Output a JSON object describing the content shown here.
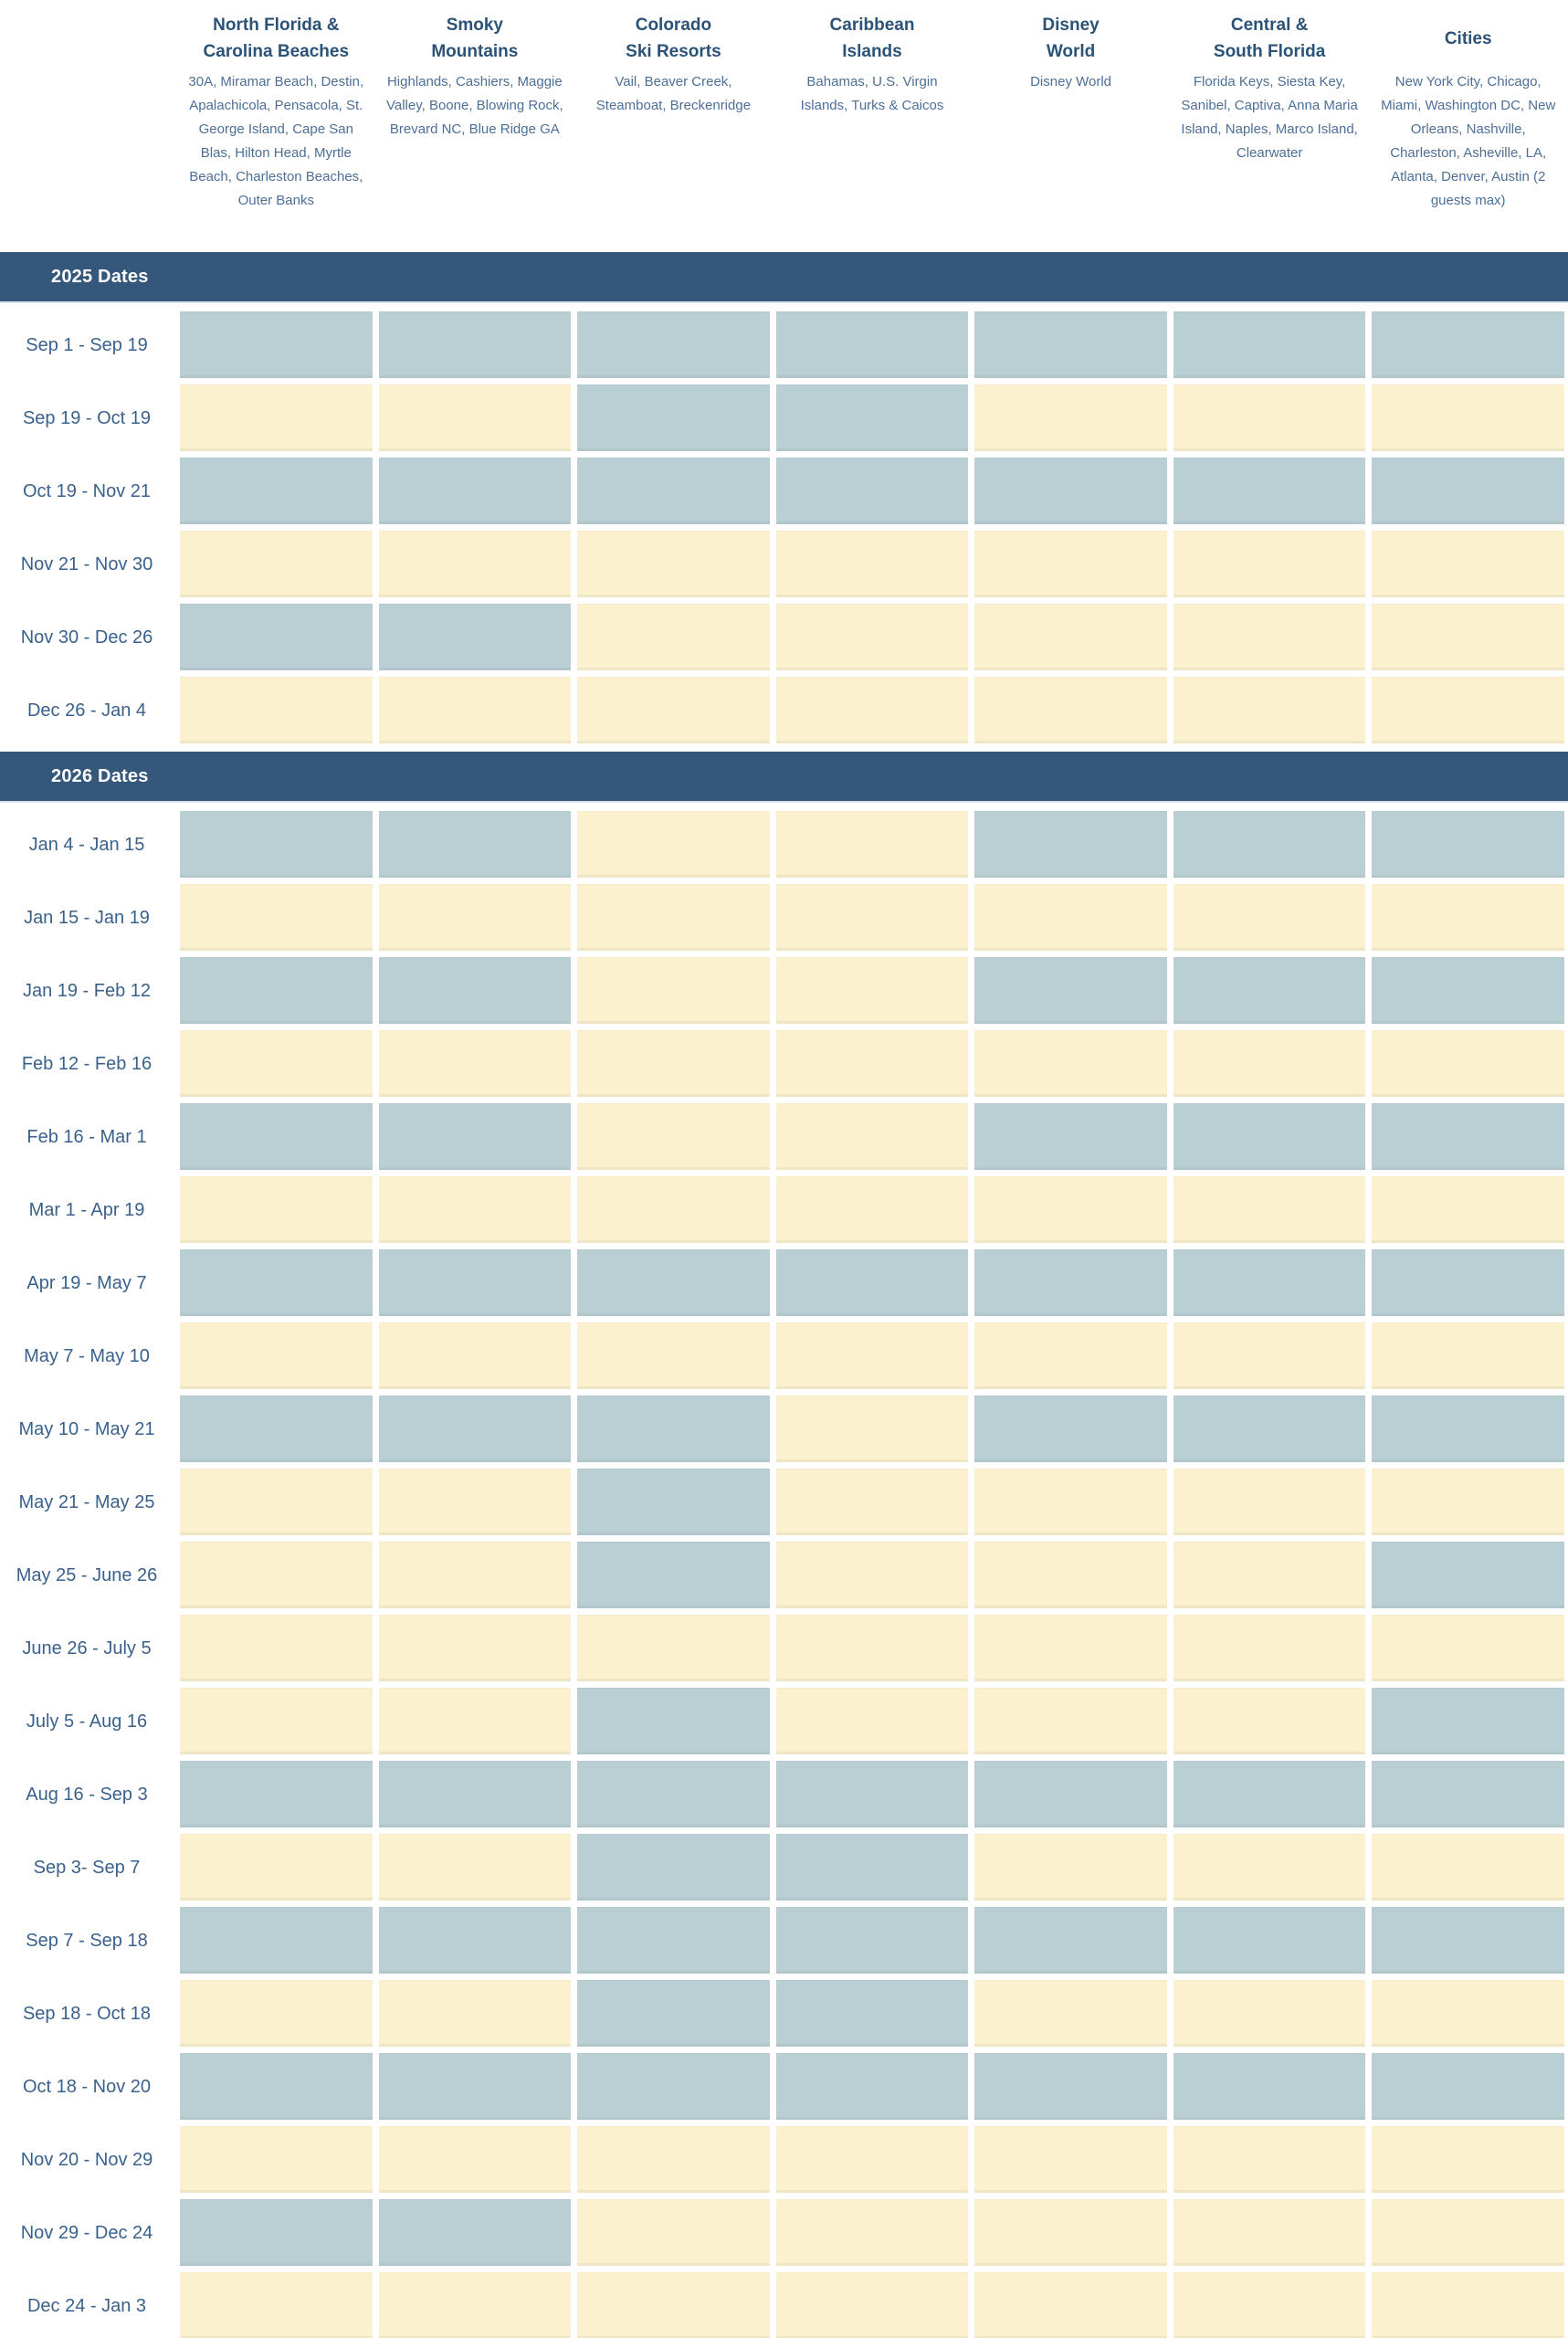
{
  "colors": {
    "banner_bg": "#35577c",
    "banner_text": "#ffffff",
    "header_title": "#2b5277",
    "header_sub": "#4d6f96",
    "row_label": "#3a618c",
    "cell_blue": "#b9cfd4",
    "cell_yellow": "#fbf1cf"
  },
  "chart_data": {
    "type": "heatmap",
    "legend_note": "cell values are the two fill colors shown: blue or yellow",
    "regions": [
      {
        "title": "North Florida &\nCarolina Beaches",
        "areas": "30A, Miramar Beach, Destin, Apalachicola, Pensacola, St. George Island, Cape San Blas, Hilton Head, Myrtle Beach, Charleston Beaches, Outer Banks"
      },
      {
        "title": "Smoky\nMountains",
        "areas": "Highlands, Cashiers, Maggie Valley, Boone, Blowing Rock, Brevard NC, Blue Ridge GA"
      },
      {
        "title": "Colorado\nSki Resorts",
        "areas": "Vail, Beaver Creek, Steamboat, Breckenridge"
      },
      {
        "title": "Caribbean\nIslands",
        "areas": "Bahamas, U.S. Virgin Islands, Turks & Caicos"
      },
      {
        "title": "Disney\nWorld",
        "areas": "Disney World"
      },
      {
        "title": "Central &\nSouth Florida",
        "areas": "Florida Keys, Siesta Key, Sanibel, Captiva, Anna Maria Island, Naples, Marco Island, Clearwater"
      },
      {
        "title": "Cities",
        "areas": "New York City, Chicago, Miami, Washington DC, New Orleans, Nashville, Charleston, Asheville, LA, Atlanta, Denver, Austin (2 guests max)"
      }
    ],
    "sections": [
      {
        "label": "2025 Dates",
        "rows": [
          {
            "label": "Sep 1 - Sep 19",
            "cells": [
              "blue",
              "blue",
              "blue",
              "blue",
              "blue",
              "blue",
              "blue"
            ]
          },
          {
            "label": "Sep 19 - Oct 19",
            "cells": [
              "yellow",
              "yellow",
              "blue",
              "blue",
              "yellow",
              "yellow",
              "yellow"
            ]
          },
          {
            "label": "Oct 19 - Nov 21",
            "cells": [
              "blue",
              "blue",
              "blue",
              "blue",
              "blue",
              "blue",
              "blue"
            ]
          },
          {
            "label": "Nov 21 - Nov 30",
            "cells": [
              "yellow",
              "yellow",
              "yellow",
              "yellow",
              "yellow",
              "yellow",
              "yellow"
            ]
          },
          {
            "label": "Nov 30 - Dec 26",
            "cells": [
              "blue",
              "blue",
              "yellow",
              "yellow",
              "yellow",
              "yellow",
              "yellow"
            ]
          },
          {
            "label": "Dec 26 - Jan 4",
            "cells": [
              "yellow",
              "yellow",
              "yellow",
              "yellow",
              "yellow",
              "yellow",
              "yellow"
            ]
          }
        ]
      },
      {
        "label": "2026 Dates",
        "rows": [
          {
            "label": "Jan 4 - Jan 15",
            "cells": [
              "blue",
              "blue",
              "yellow",
              "yellow",
              "blue",
              "blue",
              "blue"
            ]
          },
          {
            "label": "Jan 15 - Jan 19",
            "cells": [
              "yellow",
              "yellow",
              "yellow",
              "yellow",
              "yellow",
              "yellow",
              "yellow"
            ]
          },
          {
            "label": "Jan 19 - Feb 12",
            "cells": [
              "blue",
              "blue",
              "yellow",
              "yellow",
              "blue",
              "blue",
              "blue"
            ]
          },
          {
            "label": "Feb 12 - Feb 16",
            "cells": [
              "yellow",
              "yellow",
              "yellow",
              "yellow",
              "yellow",
              "yellow",
              "yellow"
            ]
          },
          {
            "label": "Feb 16 - Mar 1",
            "cells": [
              "blue",
              "blue",
              "yellow",
              "yellow",
              "blue",
              "blue",
              "blue"
            ]
          },
          {
            "label": "Mar 1 - Apr 19",
            "cells": [
              "yellow",
              "yellow",
              "yellow",
              "yellow",
              "yellow",
              "yellow",
              "yellow"
            ]
          },
          {
            "label": "Apr 19 - May 7",
            "cells": [
              "blue",
              "blue",
              "blue",
              "blue",
              "blue",
              "blue",
              "blue"
            ]
          },
          {
            "label": "May 7 - May 10",
            "cells": [
              "yellow",
              "yellow",
              "yellow",
              "yellow",
              "yellow",
              "yellow",
              "yellow"
            ]
          },
          {
            "label": "May 10 - May 21",
            "cells": [
              "blue",
              "blue",
              "blue",
              "yellow",
              "blue",
              "blue",
              "blue"
            ]
          },
          {
            "label": "May 21 - May 25",
            "cells": [
              "yellow",
              "yellow",
              "blue",
              "yellow",
              "yellow",
              "yellow",
              "yellow"
            ]
          },
          {
            "label": "May 25 - June 26",
            "cells": [
              "yellow",
              "yellow",
              "blue",
              "yellow",
              "yellow",
              "yellow",
              "blue"
            ]
          },
          {
            "label": "June 26 - July 5",
            "cells": [
              "yellow",
              "yellow",
              "yellow",
              "yellow",
              "yellow",
              "yellow",
              "yellow"
            ]
          },
          {
            "label": "July 5 - Aug 16",
            "cells": [
              "yellow",
              "yellow",
              "blue",
              "yellow",
              "yellow",
              "yellow",
              "blue"
            ]
          },
          {
            "label": "Aug 16 - Sep 3",
            "cells": [
              "blue",
              "blue",
              "blue",
              "blue",
              "blue",
              "blue",
              "blue"
            ]
          },
          {
            "label": "Sep 3- Sep 7",
            "cells": [
              "yellow",
              "yellow",
              "blue",
              "blue",
              "yellow",
              "yellow",
              "yellow"
            ]
          },
          {
            "label": "Sep 7 - Sep 18",
            "cells": [
              "blue",
              "blue",
              "blue",
              "blue",
              "blue",
              "blue",
              "blue"
            ]
          },
          {
            "label": "Sep 18 - Oct 18",
            "cells": [
              "yellow",
              "yellow",
              "blue",
              "blue",
              "yellow",
              "yellow",
              "yellow"
            ]
          },
          {
            "label": "Oct 18 - Nov 20",
            "cells": [
              "blue",
              "blue",
              "blue",
              "blue",
              "blue",
              "blue",
              "blue"
            ]
          },
          {
            "label": "Nov 20 - Nov 29",
            "cells": [
              "yellow",
              "yellow",
              "yellow",
              "yellow",
              "yellow",
              "yellow",
              "yellow"
            ]
          },
          {
            "label": "Nov 29 - Dec 24",
            "cells": [
              "blue",
              "blue",
              "yellow",
              "yellow",
              "yellow",
              "yellow",
              "yellow"
            ]
          },
          {
            "label": "Dec 24 - Jan 3",
            "cells": [
              "yellow",
              "yellow",
              "yellow",
              "yellow",
              "yellow",
              "yellow",
              "yellow"
            ]
          }
        ]
      }
    ]
  }
}
